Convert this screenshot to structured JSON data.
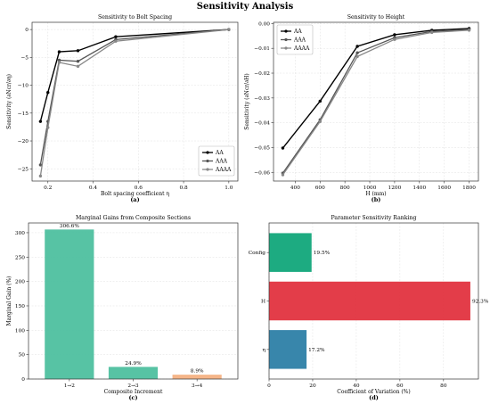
{
  "suptitle": "Sensitivity Analysis",
  "colors": {
    "aa": "#000000",
    "aaa": "#555555",
    "aaaa": "#888888",
    "bar_green": "#4ec09f",
    "bar_peach": "#f4b183",
    "config": "#11a67a",
    "h": "#e2333f",
    "eta": "#2d7fa6"
  },
  "chart_data": [
    {
      "id": "a",
      "type": "line",
      "title": "Sensitivity to Bolt Spacing",
      "xlabel": "Bolt spacing coefficient η",
      "ylabel": "Sensitivity (∂Ncr/∂η)",
      "panel_label": "(a)",
      "xlim": [
        0.13,
        1.04
      ],
      "ylim": [
        -27.2,
        1.3
      ],
      "xticks": [
        0.2,
        0.4,
        0.6,
        0.8,
        1.0
      ],
      "xtick_labels": [
        "0.2",
        "0.4",
        "0.6",
        "0.8",
        "1.0"
      ],
      "yticks": [
        -25,
        -20,
        -15,
        -10,
        -5,
        0
      ],
      "ytick_labels": [
        "−25",
        "−20",
        "−15",
        "−10",
        "−5",
        "0"
      ],
      "grid": true,
      "legend_position": "lower-right",
      "series": [
        {
          "name": "AA",
          "x": [
            0.167,
            0.2,
            0.25,
            0.333,
            0.5,
            1.0
          ],
          "values": [
            -16.5,
            -11.3,
            -4.0,
            -3.8,
            -1.3,
            0.0
          ]
        },
        {
          "name": "AAA",
          "x": [
            0.167,
            0.2,
            0.25,
            0.333,
            0.5,
            1.0
          ],
          "values": [
            -24.3,
            -16.5,
            -5.5,
            -5.7,
            -1.8,
            0.0
          ]
        },
        {
          "name": "AAAA",
          "x": [
            0.167,
            0.2,
            0.25,
            0.333,
            0.5,
            1.0
          ],
          "values": [
            -26.3,
            -17.6,
            -5.9,
            -6.6,
            -2.1,
            0.0
          ]
        }
      ]
    },
    {
      "id": "b",
      "type": "line",
      "title": "Sensitivity to Height",
      "xlabel": "H (mm)",
      "ylabel": "Sensitivity (∂Ncr/∂H)",
      "panel_label": "(b)",
      "xlim": [
        225,
        1875
      ],
      "ylim": [
        -0.0635,
        0.0005
      ],
      "xticks": [
        400,
        600,
        800,
        1000,
        1200,
        1400,
        1600,
        1800
      ],
      "xtick_labels": [
        "400",
        "600",
        "800",
        "1000",
        "1200",
        "1400",
        "1600",
        "1800"
      ],
      "yticks": [
        -0.06,
        -0.05,
        -0.04,
        -0.03,
        -0.02,
        -0.01,
        0.0
      ],
      "ytick_labels": [
        "−0.06",
        "−0.05",
        "−0.04",
        "−0.03",
        "−0.02",
        "−0.01",
        "0.00"
      ],
      "grid": true,
      "legend_position": "upper-left",
      "series": [
        {
          "name": "AA",
          "x": [
            300,
            600,
            900,
            1200,
            1500,
            1800
          ],
          "values": [
            -0.0502,
            -0.0313,
            -0.0092,
            -0.0045,
            -0.0027,
            -0.002
          ]
        },
        {
          "name": "AAA",
          "x": [
            300,
            600,
            900,
            1200,
            1500,
            1800
          ],
          "values": [
            -0.0603,
            -0.0388,
            -0.0118,
            -0.0057,
            -0.0032,
            -0.0024
          ]
        },
        {
          "name": "AAAA",
          "x": [
            300,
            600,
            900,
            1200,
            1500,
            1800
          ],
          "values": [
            -0.061,
            -0.0395,
            -0.0133,
            -0.0064,
            -0.0036,
            -0.0027
          ]
        }
      ]
    },
    {
      "id": "c",
      "type": "bar",
      "title": "Marginal Gains from Composite Sections",
      "xlabel": "Composite Increment",
      "ylabel": "Marginal Gain (%)",
      "panel_label": "(c)",
      "categories": [
        "1→2",
        "2→3",
        "3→4"
      ],
      "values": [
        306.6,
        24.9,
        8.9
      ],
      "data_labels": [
        "306.6%",
        "24.9%",
        "8.9%"
      ],
      "ylim": [
        0,
        320
      ],
      "yticks": [
        0,
        50,
        100,
        150,
        200,
        250,
        300
      ],
      "ytick_labels": [
        "0",
        "50",
        "100",
        "150",
        "200",
        "250",
        "300"
      ],
      "grid": true
    },
    {
      "id": "d",
      "type": "bar",
      "orientation": "horizontal",
      "title": "Parameter Sensitivity Ranking",
      "xlabel": "Coefficient of Variation (%)",
      "ylabel": "",
      "panel_label": "(d)",
      "categories": [
        "Config",
        "H",
        "η"
      ],
      "values": [
        19.5,
        92.3,
        17.2
      ],
      "data_labels": [
        "19.5%",
        "92.3%",
        "17.2%"
      ],
      "xlim": [
        0,
        96
      ],
      "xticks": [
        0,
        20,
        40,
        60,
        80
      ],
      "xtick_labels": [
        "0",
        "20",
        "40",
        "60",
        "80"
      ],
      "grid": true
    }
  ]
}
